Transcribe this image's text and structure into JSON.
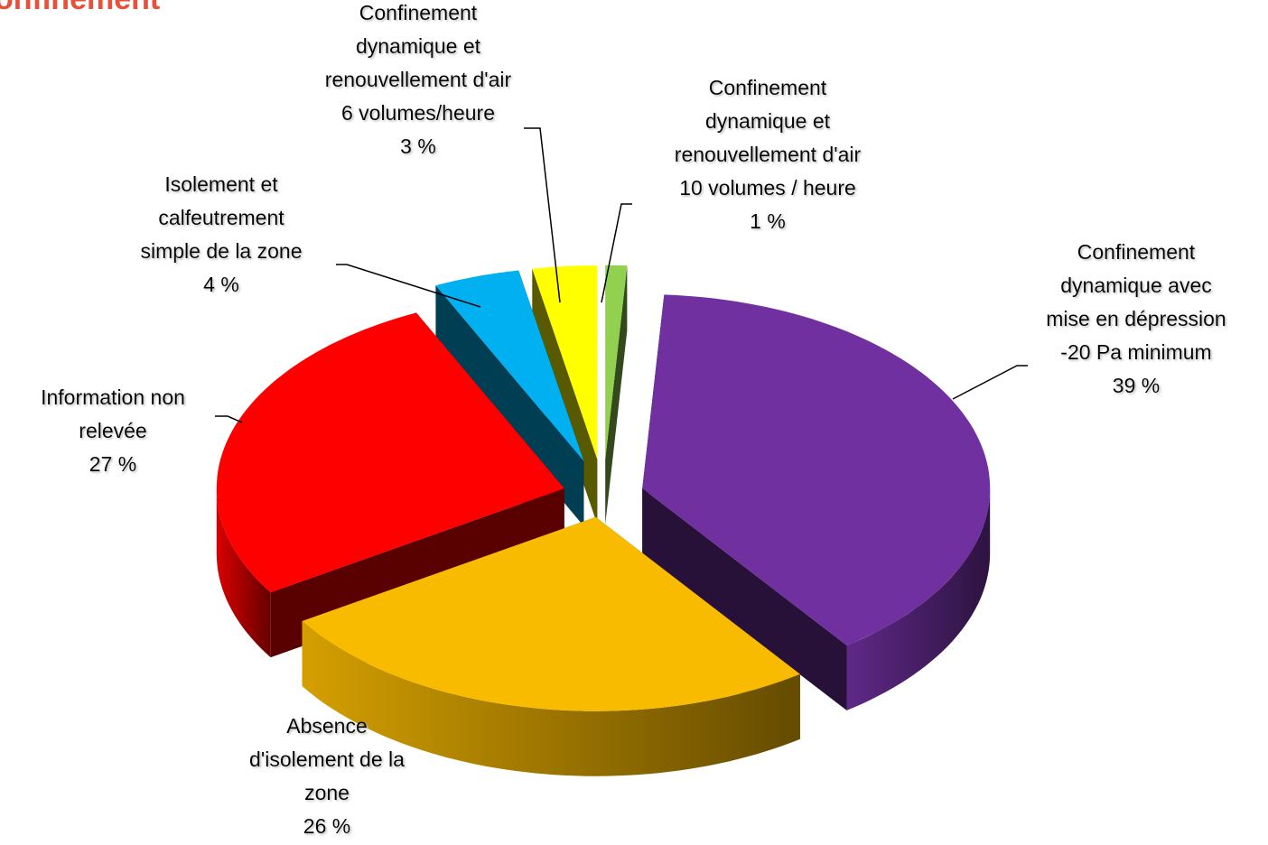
{
  "chart_data": {
    "type": "pie",
    "title": "onfinement",
    "categories": [
      [
        "Confinement",
        "dynamique et",
        "renouvellement d'air",
        "10 volumes / heure"
      ],
      [
        "Confinement",
        "dynamique avec",
        "mise en dépression",
        "-20 Pa minimum"
      ],
      [
        "Absence",
        "d'isolement de la",
        "zone"
      ],
      [
        "Information non",
        "relevée"
      ],
      [
        "Isolement et",
        "calfeutrement",
        "simple de la zone"
      ],
      [
        "Confinement",
        "dynamique et",
        "renouvellement d'air",
        "6 volumes/heure"
      ]
    ],
    "values": [
      1,
      39,
      26,
      27,
      4,
      3
    ],
    "value_labels": [
      "1 %",
      "39 %",
      "26 %",
      "27 %",
      "4 %",
      "3 %"
    ],
    "colors": [
      "#92d050",
      "#7030a0",
      "#f9bb00",
      "#ff0000",
      "#00b0f0",
      "#ffff00"
    ]
  }
}
